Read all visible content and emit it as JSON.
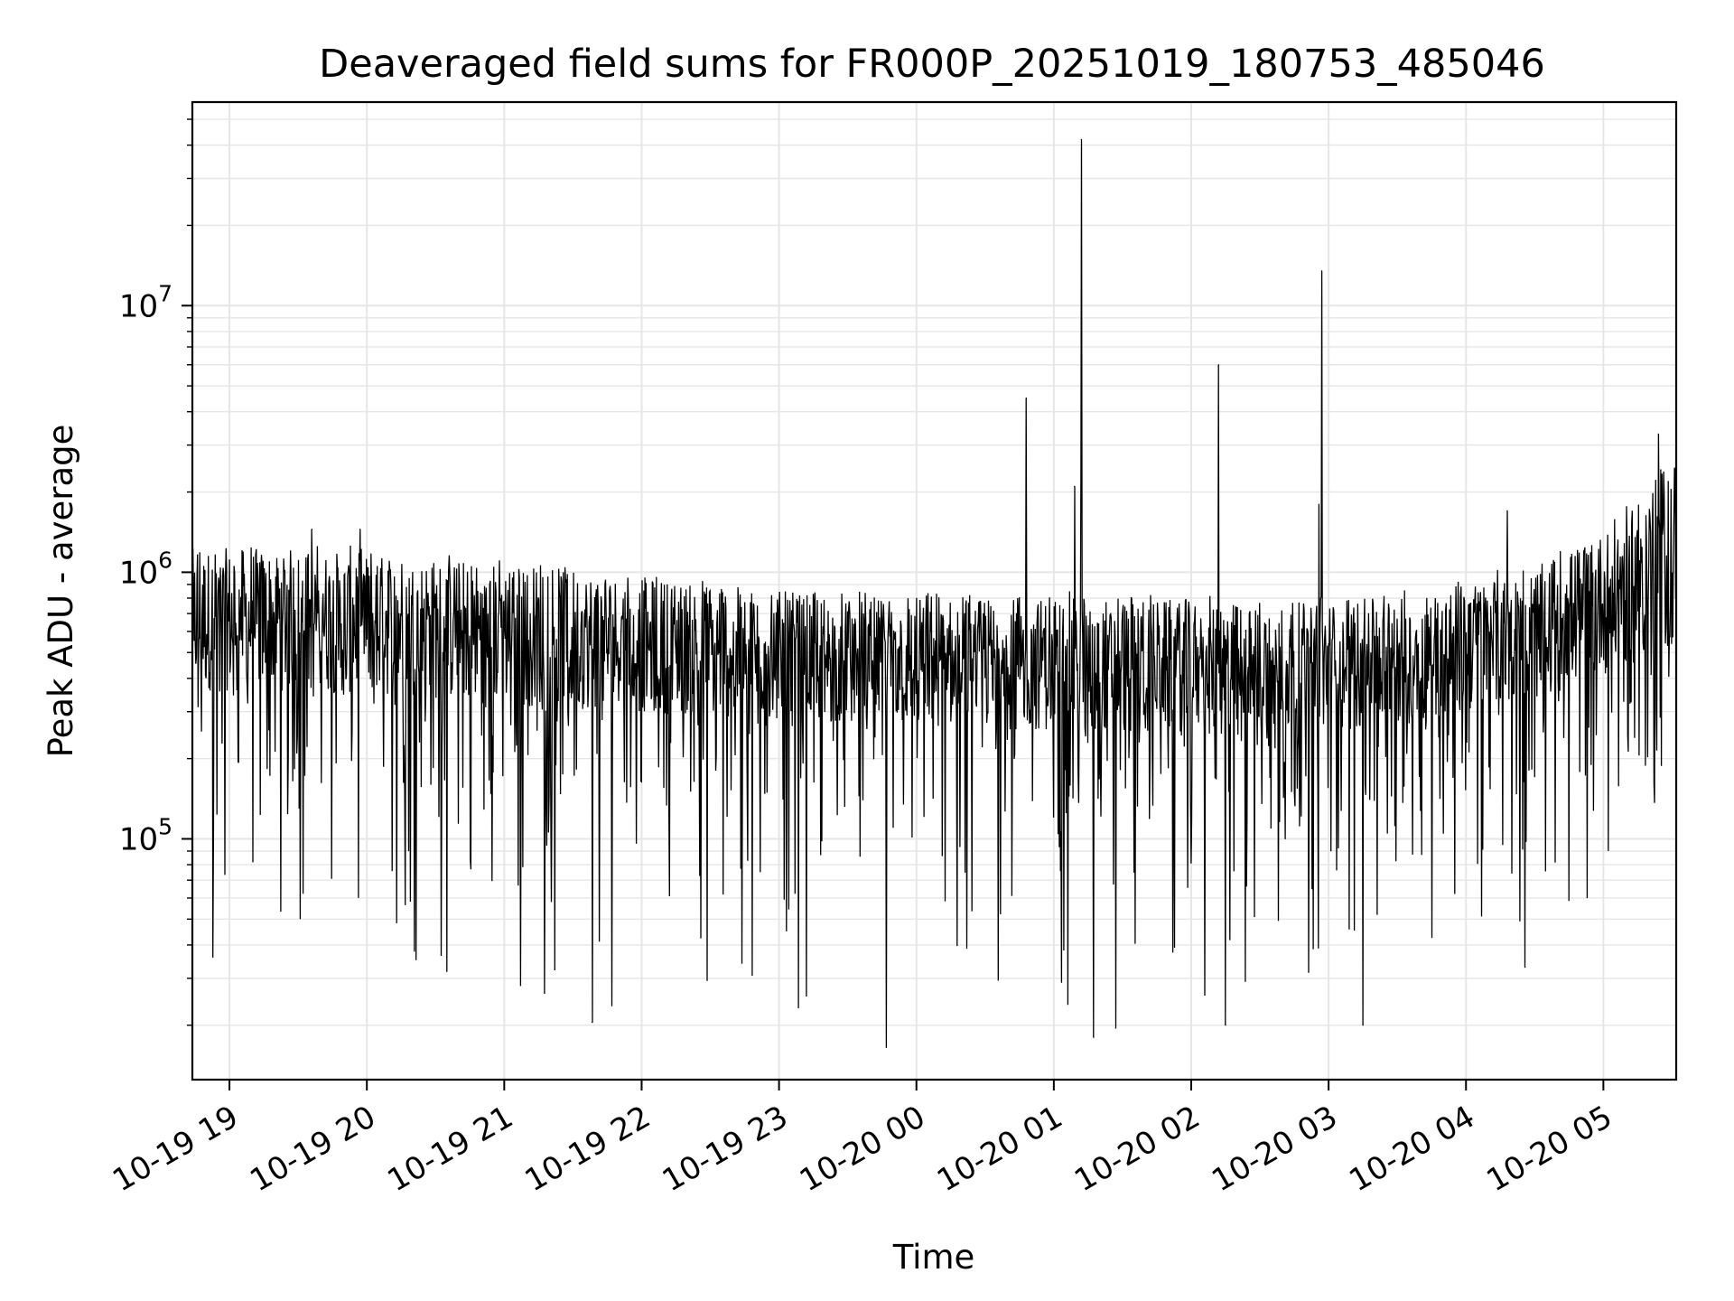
{
  "chart_data": {
    "type": "line",
    "title": "Deaveraged field sums for FR000P_20251019_180753_485046",
    "xlabel": "Time",
    "ylabel": "Peak ADU - average",
    "y_scale": "log",
    "ylim": [
      12500,
      58000000
    ],
    "xlim_hours": [
      18.73,
      29.53
    ],
    "x_tick_hours": [
      19,
      20,
      21,
      22,
      23,
      24,
      25,
      26,
      27,
      28,
      29
    ],
    "x_tick_labels": [
      "10-19 19",
      "10-19 20",
      "10-19 21",
      "10-19 22",
      "10-19 23",
      "10-20 00",
      "10-20 01",
      "10-20 02",
      "10-20 03",
      "10-20 04",
      "10-20 05"
    ],
    "y_ticks": [
      {
        "value": 100000,
        "base": "10",
        "exp": "5"
      },
      {
        "value": 1000000,
        "base": "10",
        "exp": "6"
      },
      {
        "value": 10000000,
        "base": "10",
        "exp": "7"
      }
    ],
    "grid": true,
    "series": [
      {
        "name": "Peak ADU - average",
        "color": "#000000",
        "baseline": [
          {
            "hour": 18.73,
            "median": 650000,
            "top": 1300000,
            "bottom": 45000
          },
          {
            "hour": 19.5,
            "median": 650000,
            "top": 1300000,
            "bottom": 40000
          },
          {
            "hour": 20.5,
            "median": 600000,
            "top": 1200000,
            "bottom": 30000
          },
          {
            "hour": 21.5,
            "median": 560000,
            "top": 1100000,
            "bottom": 22000
          },
          {
            "hour": 22.5,
            "median": 520000,
            "top": 950000,
            "bottom": 25000
          },
          {
            "hour": 23.5,
            "median": 480000,
            "top": 850000,
            "bottom": 22000
          },
          {
            "hour": 24.5,
            "median": 470000,
            "top": 850000,
            "bottom": 25000
          },
          {
            "hour": 25.5,
            "median": 450000,
            "top": 850000,
            "bottom": 22000
          },
          {
            "hour": 26.5,
            "median": 430000,
            "top": 800000,
            "bottom": 25000
          },
          {
            "hour": 27.5,
            "median": 480000,
            "top": 850000,
            "bottom": 40000
          },
          {
            "hour": 28.5,
            "median": 600000,
            "top": 1100000,
            "bottom": 50000
          },
          {
            "hour": 29.0,
            "median": 750000,
            "top": 1500000,
            "bottom": 60000
          },
          {
            "hour": 29.53,
            "median": 950000,
            "top": 3000000,
            "bottom": 150000
          }
        ],
        "peaks": [
          {
            "hour": 24.8,
            "value": 4500000
          },
          {
            "hour": 25.2,
            "value": 42000000
          },
          {
            "hour": 25.15,
            "value": 2100000
          },
          {
            "hour": 26.2,
            "value": 6000000
          },
          {
            "hour": 26.95,
            "value": 13500000
          },
          {
            "hour": 26.93,
            "value": 1800000
          },
          {
            "hour": 28.3,
            "value": 1700000
          },
          {
            "hour": 29.4,
            "value": 3300000
          },
          {
            "hour": 19.6,
            "value": 1450000
          },
          {
            "hour": 19.95,
            "value": 1450000
          }
        ],
        "dips": [
          {
            "hour": 23.78,
            "value": 16500
          },
          {
            "hour": 25.29,
            "value": 18000
          },
          {
            "hour": 25.45,
            "value": 19500
          },
          {
            "hour": 26.25,
            "value": 20000
          },
          {
            "hour": 21.64,
            "value": 20500
          },
          {
            "hour": 27.25,
            "value": 20000
          },
          {
            "hour": 28.43,
            "value": 33000
          },
          {
            "hour": 18.88,
            "value": 36000
          }
        ]
      }
    ]
  }
}
